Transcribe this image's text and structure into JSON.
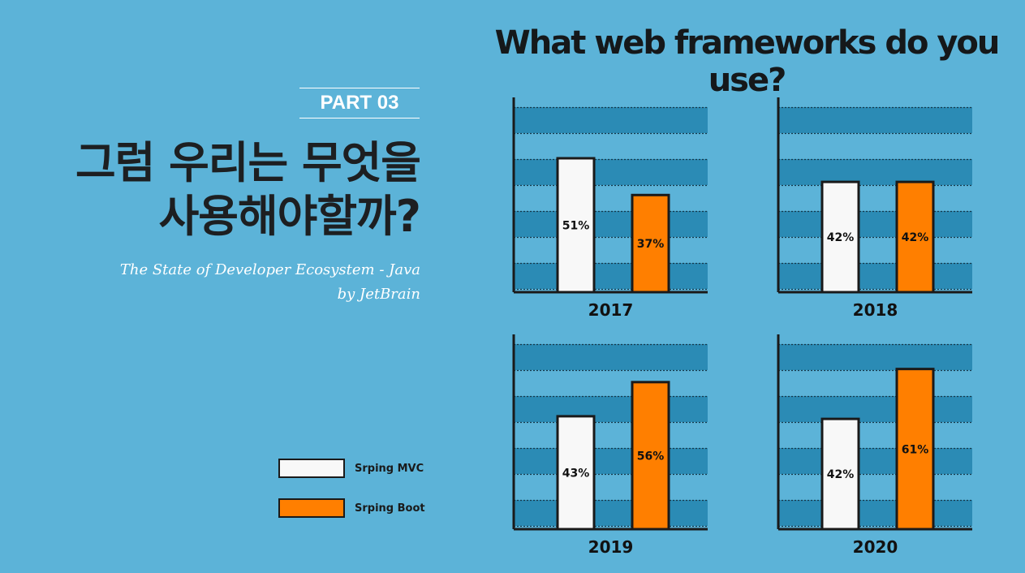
{
  "title": "What web frameworks do you use?",
  "part": "PART 03",
  "headline": {
    "line1": "그럼 우리는 무엇을",
    "line2": "사용해야할까?"
  },
  "subtitle": {
    "line1": "The State of Developer Ecosystem - Java",
    "line2": "by JetBrain"
  },
  "legend": [
    {
      "label": "Srping MVC",
      "color": "#f8f8f8"
    },
    {
      "label": "Srping Boot",
      "color": "#ff7f00"
    }
  ],
  "colors": {
    "background": "#5cb3d8",
    "band": "#2b8bb5",
    "mvc": "#f8f8f8",
    "boot": "#ff7f00",
    "outline": "#1a1a1a"
  },
  "chart_data": [
    {
      "type": "bar",
      "xlabel": "2017",
      "categories": [
        "Srping MVC",
        "Srping Boot"
      ],
      "values": [
        51,
        37
      ],
      "labels": [
        "51%",
        "37%"
      ]
    },
    {
      "type": "bar",
      "xlabel": "2018",
      "categories": [
        "Srping MVC",
        "Srping Boot"
      ],
      "values": [
        42,
        42
      ],
      "labels": [
        "42%",
        "42%"
      ]
    },
    {
      "type": "bar",
      "xlabel": "2019",
      "categories": [
        "Srping MVC",
        "Srping Boot"
      ],
      "values": [
        43,
        56
      ],
      "labels": [
        "43%",
        "56%"
      ]
    },
    {
      "type": "bar",
      "xlabel": "2020",
      "categories": [
        "Srping MVC",
        "Srping Boot"
      ],
      "values": [
        42,
        61
      ],
      "labels": [
        "42%",
        "61%"
      ]
    }
  ]
}
